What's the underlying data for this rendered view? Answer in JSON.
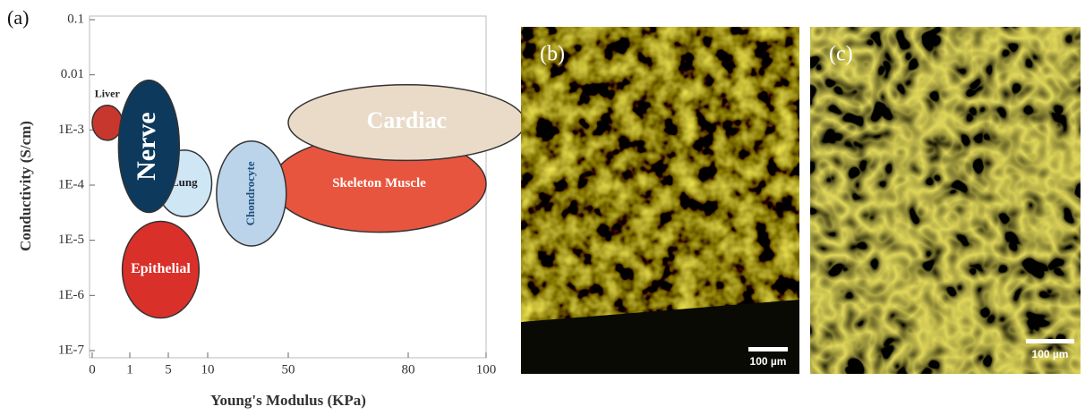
{
  "chart_data": {
    "type": "region",
    "panel_label": "(a)",
    "xlabel": "Young's Modulus (KPa)",
    "ylabel": "Conductivity (S/cm)",
    "xlim": [
      0,
      100
    ],
    "xticks": [
      0,
      1,
      5,
      10,
      50,
      80,
      100
    ],
    "ylim": [
      1e-07,
      0.1
    ],
    "ylog": true,
    "yticks": [
      0.1,
      0.01,
      {
        "value": 0.001,
        "label": "1E-3"
      },
      {
        "value": 0.0001,
        "label": "1E-4"
      },
      {
        "value": 1e-05,
        "label": "1E-5"
      },
      {
        "value": 1e-06,
        "label": "1E-6"
      },
      {
        "value": 1e-07,
        "label": "1E-7"
      }
    ],
    "regions": [
      {
        "name": "Liver",
        "color": "#c8372d",
        "xrange": [
          0,
          0.8
        ],
        "yrange": [
          0.0028,
          0.00065
        ]
      },
      {
        "name": "Skeleton Muscle",
        "color": "#e8553e",
        "xrange": [
          42,
          100
        ],
        "yrange": [
          0.00079,
          1.4e-05
        ]
      },
      {
        "name": "Cardiac",
        "color": "#eadbc9",
        "xrange": [
          50,
          110
        ],
        "yrange": [
          0.0066,
          0.00028
        ]
      },
      {
        "name": "Epithelial",
        "color": "#d9302a",
        "xrange": [
          0.8,
          8.9
        ],
        "yrange": [
          2.2e-05,
          3.9e-07
        ]
      },
      {
        "name": "Lung",
        "color": "#cfe6f5",
        "xrange": [
          3.8,
          12
        ],
        "yrange": [
          0.00043,
          2.7e-05
        ]
      },
      {
        "name": "Chondrocyte",
        "color": "#bcd4ea",
        "xrange": [
          14.4,
          49
        ],
        "yrange": [
          0.00063,
          7.9e-06
        ]
      },
      {
        "name": "Nerve",
        "color": "#0d3a5c",
        "xrange": [
          0.7,
          6.4
        ],
        "yrange": [
          0.008,
          3.2e-05
        ]
      }
    ]
  },
  "panels": {
    "b": {
      "label": "(b)",
      "scale_bar": "100 µm"
    },
    "c": {
      "label": "(c)",
      "scale_bar": "100 µm"
    }
  }
}
